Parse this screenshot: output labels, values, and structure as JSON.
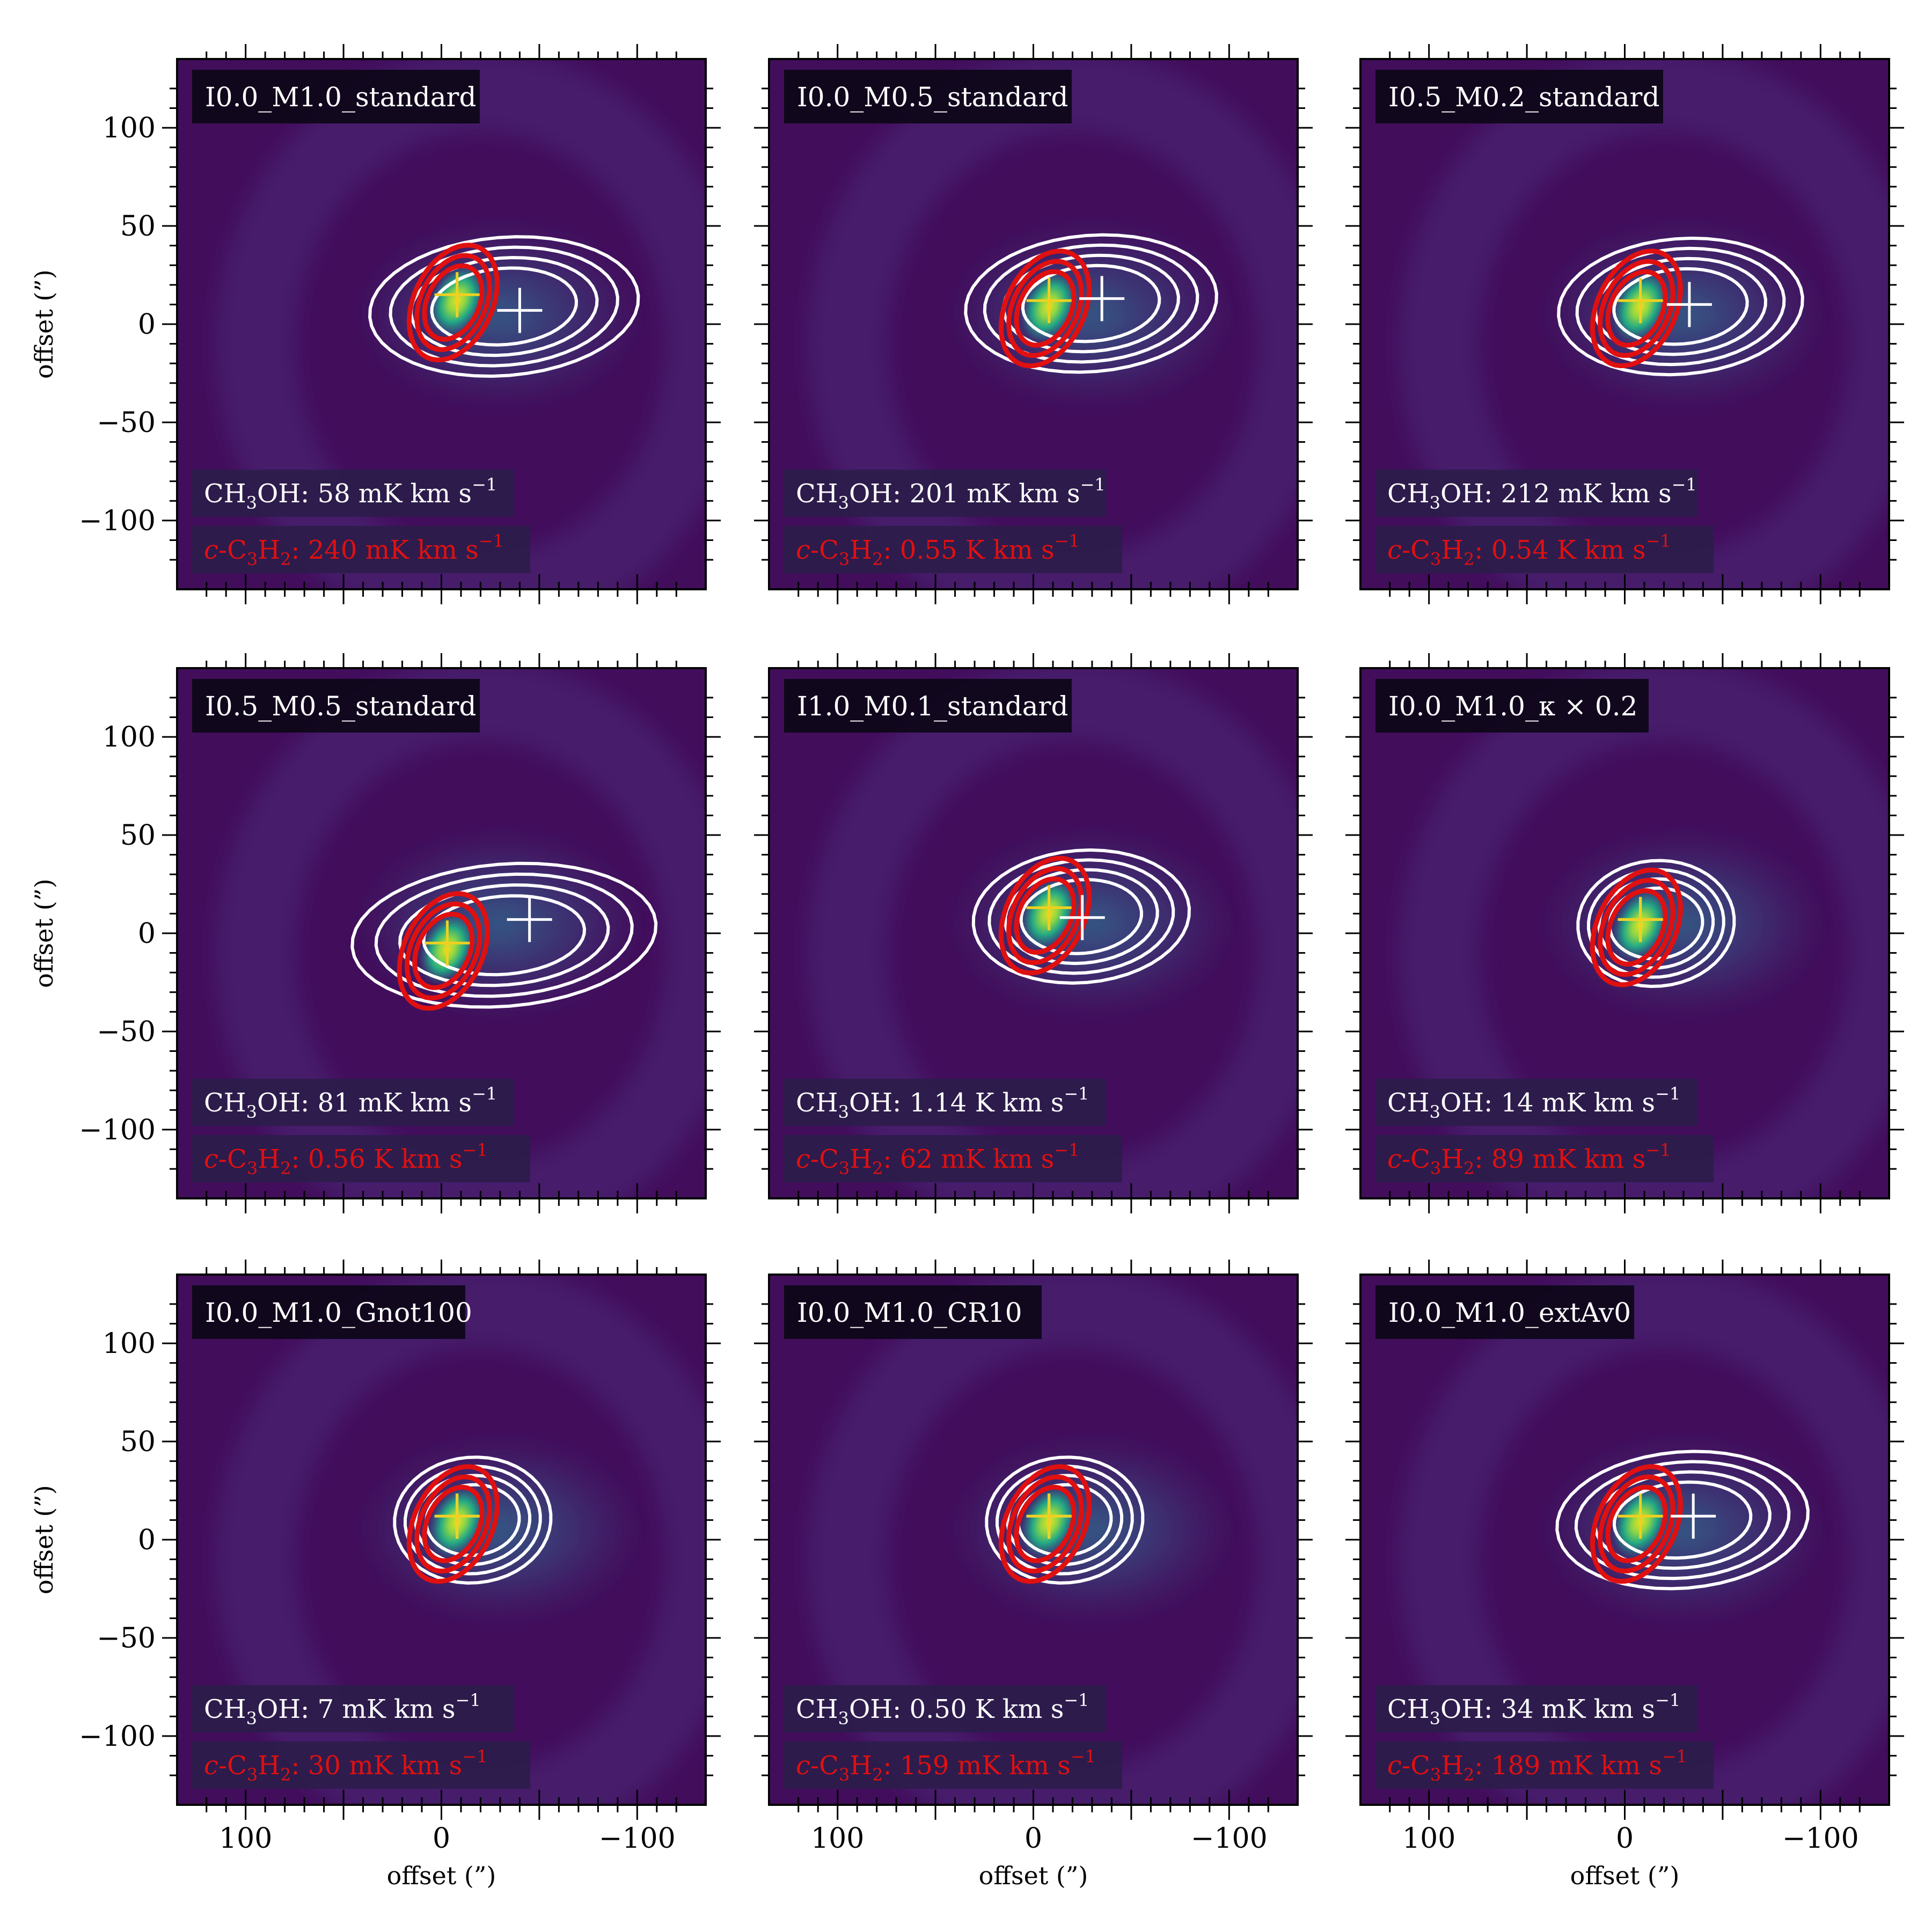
{
  "figure": {
    "x_axis_label": "offset (”)",
    "y_axis_label": "offset (”)",
    "x_ticks": [
      "100",
      "0",
      "−100"
    ],
    "y_ticks": [
      "100",
      "50",
      "0",
      "−50",
      "−100"
    ]
  },
  "colors": {
    "background_dark": "#420e5c",
    "emission_peak": "#e8e020",
    "ch3oh_contour": "#ffffff",
    "c3h2_contour": "#e01010"
  },
  "chart_data": [
    {
      "type": "heatmap",
      "title": "I0.0_M1.0_standard",
      "xlabel": "offset (”)",
      "ylabel": "offset (”)",
      "xlim": [
        135,
        -135
      ],
      "ylim": [
        -135,
        135
      ],
      "ch3oh_label": "CH",
      "ch3oh_value": "58 mK km s",
      "c3h2_value": "240 mK km s",
      "white_cross": [
        -40,
        7
      ],
      "red_cross": [
        -8,
        15
      ]
    },
    {
      "type": "heatmap",
      "title": "I0.0_M0.5_standard",
      "xlabel": "offset (”)",
      "ylabel": "offset (”)",
      "xlim": [
        135,
        -135
      ],
      "ylim": [
        -135,
        135
      ],
      "ch3oh_value": "201 mK km s",
      "c3h2_value": "0.55 K km s",
      "white_cross": [
        -35,
        13
      ],
      "red_cross": [
        -8,
        12
      ]
    },
    {
      "type": "heatmap",
      "title": "I0.5_M0.2_standard",
      "xlabel": "offset (”)",
      "ylabel": "offset (”)",
      "xlim": [
        135,
        -135
      ],
      "ylim": [
        -135,
        135
      ],
      "ch3oh_value": "212 mK km s",
      "c3h2_value": "0.54 K km s",
      "white_cross": [
        -33,
        10
      ],
      "red_cross": [
        -8,
        12
      ]
    },
    {
      "type": "heatmap",
      "title": "I0.5_M0.5_standard",
      "xlabel": "offset (”)",
      "ylabel": "offset (”)",
      "xlim": [
        135,
        -135
      ],
      "ylim": [
        -135,
        135
      ],
      "ch3oh_value": "81 mK km s",
      "c3h2_value": "0.56 K km s",
      "white_cross": [
        -45,
        7
      ],
      "red_cross": [
        -3,
        -5
      ]
    },
    {
      "type": "heatmap",
      "title": "I1.0_M0.1_standard",
      "xlabel": "offset (”)",
      "ylabel": "offset (”)",
      "xlim": [
        135,
        -135
      ],
      "ylim": [
        -135,
        135
      ],
      "ch3oh_value": "1.14 K km s",
      "c3h2_value": "62 mK km s",
      "white_cross": [
        -25,
        8
      ],
      "red_cross": [
        -8,
        13
      ]
    },
    {
      "type": "heatmap",
      "title": "I0.0_M1.0_κ × 0.2",
      "xlabel": "offset (”)",
      "ylabel": "offset (”)",
      "xlim": [
        135,
        -135
      ],
      "ylim": [
        -135,
        135
      ],
      "ch3oh_value": "14 mK km s",
      "c3h2_value": "89 mK km s",
      "white_cross": [
        -8,
        7
      ],
      "red_cross": [
        -8,
        7
      ]
    },
    {
      "type": "heatmap",
      "title": "I0.0_M1.0_Gnot100",
      "xlabel": "offset (”)",
      "ylabel": "offset (”)",
      "xlim": [
        135,
        -135
      ],
      "ylim": [
        -135,
        135
      ],
      "ch3oh_value": "7 mK km s",
      "c3h2_value": "30 mK km s",
      "white_cross": [
        -8,
        12
      ],
      "red_cross": [
        -8,
        12
      ]
    },
    {
      "type": "heatmap",
      "title": "I0.0_M1.0_CR10",
      "xlabel": "offset (”)",
      "ylabel": "offset (”)",
      "xlim": [
        135,
        -135
      ],
      "ylim": [
        -135,
        135
      ],
      "ch3oh_value": "0.50 K km s",
      "c3h2_value": "159 mK km s",
      "white_cross": [
        -8,
        12
      ],
      "red_cross": [
        -8,
        12
      ]
    },
    {
      "type": "heatmap",
      "title": "I0.0_M1.0_extAv0",
      "xlabel": "offset (”)",
      "ylabel": "offset (”)",
      "xlim": [
        135,
        -135
      ],
      "ylim": [
        -135,
        135
      ],
      "ch3oh_value": "34 mK km s",
      "c3h2_value": "189 mK km s",
      "white_cross": [
        -35,
        12
      ],
      "red_cross": [
        -8,
        12
      ]
    }
  ]
}
